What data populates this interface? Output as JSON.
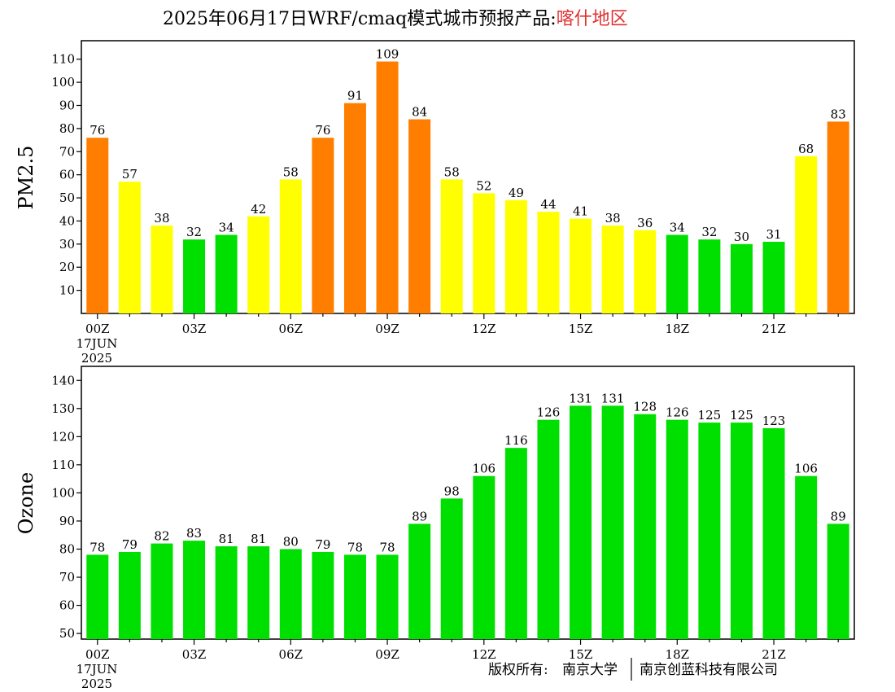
{
  "title": {
    "main": "2025年06月17日WRF/cmaq模式城市预报产品:",
    "region": "喀什地区",
    "region_color": "#e03030"
  },
  "x_axis": {
    "tick_labels": [
      "00Z",
      "03Z",
      "06Z",
      "09Z",
      "12Z",
      "15Z",
      "18Z",
      "21Z"
    ],
    "tick_hours": [
      0,
      3,
      6,
      9,
      12,
      15,
      18,
      21
    ],
    "date_day": "17JUN",
    "date_year": "2025"
  },
  "colors": {
    "green": "#00e000",
    "yellow": "#ffff00",
    "orange": "#ff7e00"
  },
  "chart_data": [
    {
      "type": "bar",
      "ylabel": "PM2.5",
      "ylim": [
        0,
        118
      ],
      "yticks": [
        10,
        20,
        30,
        40,
        50,
        60,
        70,
        80,
        90,
        100,
        110
      ],
      "x": [
        0,
        1,
        2,
        3,
        4,
        5,
        6,
        7,
        8,
        9,
        10,
        11,
        12,
        13,
        14,
        15,
        16,
        17,
        18,
        19,
        20,
        21,
        22,
        23
      ],
      "values": [
        76,
        57,
        38,
        32,
        34,
        42,
        58,
        76,
        91,
        109,
        84,
        58,
        52,
        49,
        44,
        41,
        38,
        36,
        34,
        32,
        30,
        31,
        68,
        83
      ],
      "color_thresholds": {
        "green_max": 35,
        "yellow_max": 75
      }
    },
    {
      "type": "bar",
      "ylabel": "Ozone",
      "ylim": [
        48,
        145
      ],
      "yticks": [
        50,
        60,
        70,
        80,
        90,
        100,
        110,
        120,
        130,
        140
      ],
      "x": [
        0,
        1,
        2,
        3,
        4,
        5,
        6,
        7,
        8,
        9,
        10,
        11,
        12,
        13,
        14,
        15,
        16,
        17,
        18,
        19,
        20,
        21,
        22,
        23
      ],
      "values": [
        78,
        79,
        82,
        83,
        81,
        81,
        80,
        79,
        78,
        78,
        89,
        98,
        106,
        116,
        126,
        131,
        131,
        128,
        126,
        125,
        125,
        123,
        106,
        89
      ],
      "bar_color": "#00e000"
    }
  ],
  "footer": {
    "copyright_label": "版权所有:",
    "org1": "南京大学",
    "org2": "南京创蓝科技有限公司"
  }
}
